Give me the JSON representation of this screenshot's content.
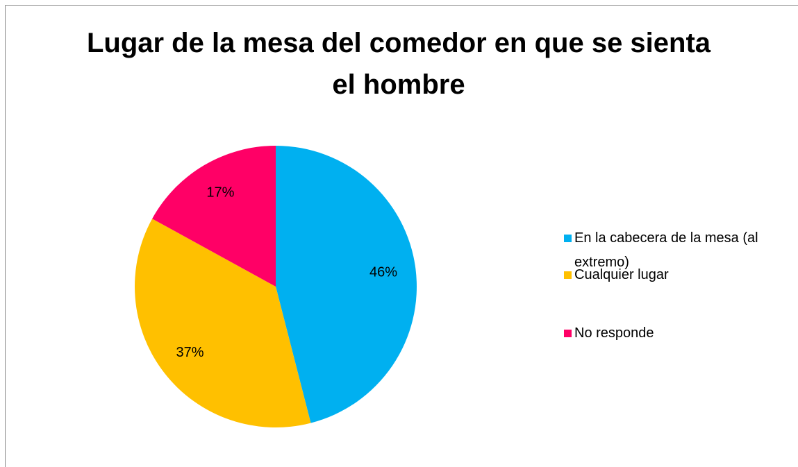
{
  "chart_data": {
    "type": "pie",
    "title": "Lugar de la mesa del comedor en que se sienta el hombre",
    "categories": [
      "En la cabecera de la mesa (al extremo)",
      "Cualquier lugar",
      "No responde"
    ],
    "values": [
      46,
      37,
      17
    ],
    "value_labels": [
      "46%",
      "37%",
      "17%"
    ],
    "colors": [
      "#00b0f0",
      "#ffc000",
      "#ff0066"
    ]
  }
}
